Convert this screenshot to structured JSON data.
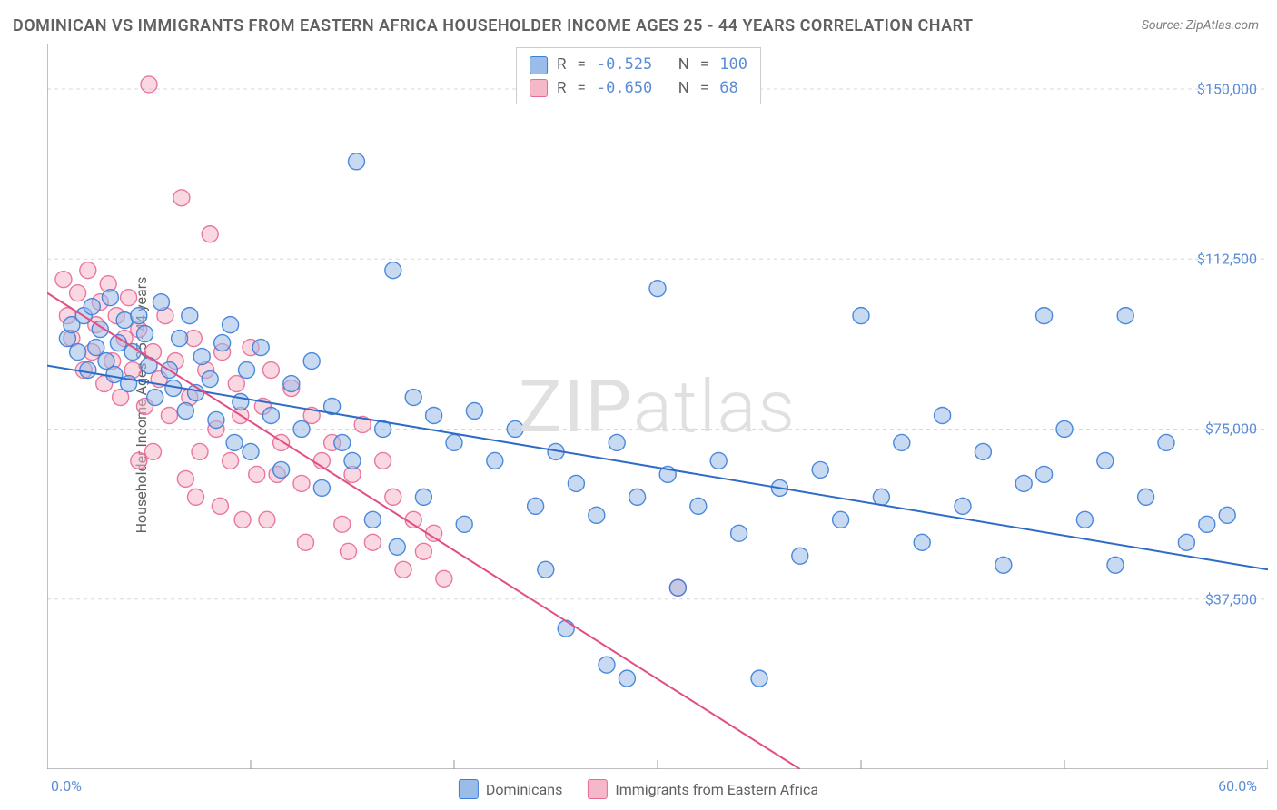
{
  "title": "DOMINICAN VS IMMIGRANTS FROM EASTERN AFRICA HOUSEHOLDER INCOME AGES 25 - 44 YEARS CORRELATION CHART",
  "source": "Source: ZipAtlas.com",
  "ylabel": "Householder Income Ages 25 - 44 years",
  "watermark": "ZIPatlas",
  "chart": {
    "type": "scatter",
    "background_color": "#ffffff",
    "plot_border_color": "#969696",
    "grid_color": "#d8d8d8",
    "grid_dash": "4,4",
    "xlim": [
      0,
      60
    ],
    "ylim": [
      0,
      160000
    ],
    "x_min_label": "0.0%",
    "x_max_label": "60.0%",
    "x_ticks": [
      0,
      10,
      20,
      30,
      40,
      50,
      60
    ],
    "y_ticks": [
      {
        "v": 37500,
        "label": "$37,500"
      },
      {
        "v": 75000,
        "label": "$75,000"
      },
      {
        "v": 112500,
        "label": "$112,500"
      },
      {
        "v": 150000,
        "label": "$150,000"
      }
    ],
    "y_tick_color": "#5b8dd6",
    "x_tick_color": "#5b8dd6",
    "marker_radius": 9,
    "marker_opacity": 0.55,
    "marker_stroke_width": 1.4,
    "trend_line_width": 2
  },
  "series": [
    {
      "name": "Dominicans",
      "fill_color": "#9bbce8",
      "stroke_color": "#3b7dd8",
      "line_color": "#2e6bc7",
      "R": "-0.525",
      "N": "100",
      "trend": {
        "x1": 0,
        "y1": 89000,
        "x2": 60,
        "y2": 44000
      },
      "points": [
        [
          1.0,
          95000
        ],
        [
          1.2,
          98000
        ],
        [
          1.5,
          92000
        ],
        [
          1.8,
          100000
        ],
        [
          2.0,
          88000
        ],
        [
          2.2,
          102000
        ],
        [
          2.4,
          93000
        ],
        [
          2.6,
          97000
        ],
        [
          2.9,
          90000
        ],
        [
          3.1,
          104000
        ],
        [
          3.3,
          87000
        ],
        [
          3.5,
          94000
        ],
        [
          3.8,
          99000
        ],
        [
          4.0,
          85000
        ],
        [
          4.2,
          92000
        ],
        [
          4.5,
          100000
        ],
        [
          4.8,
          96000
        ],
        [
          5.0,
          89000
        ],
        [
          5.3,
          82000
        ],
        [
          5.6,
          103000
        ],
        [
          6.0,
          88000
        ],
        [
          6.2,
          84000
        ],
        [
          6.5,
          95000
        ],
        [
          6.8,
          79000
        ],
        [
          7.0,
          100000
        ],
        [
          7.3,
          83000
        ],
        [
          7.6,
          91000
        ],
        [
          8.0,
          86000
        ],
        [
          8.3,
          77000
        ],
        [
          8.6,
          94000
        ],
        [
          9.0,
          98000
        ],
        [
          9.2,
          72000
        ],
        [
          9.5,
          81000
        ],
        [
          9.8,
          88000
        ],
        [
          10.0,
          70000
        ],
        [
          10.5,
          93000
        ],
        [
          11.0,
          78000
        ],
        [
          11.5,
          66000
        ],
        [
          12.0,
          85000
        ],
        [
          12.5,
          75000
        ],
        [
          13.0,
          90000
        ],
        [
          13.5,
          62000
        ],
        [
          14.0,
          80000
        ],
        [
          14.5,
          72000
        ],
        [
          15.0,
          68000
        ],
        [
          15.2,
          134000
        ],
        [
          16.0,
          55000
        ],
        [
          16.5,
          75000
        ],
        [
          17.0,
          110000
        ],
        [
          17.2,
          49000
        ],
        [
          18.0,
          82000
        ],
        [
          18.5,
          60000
        ],
        [
          19.0,
          78000
        ],
        [
          20.0,
          72000
        ],
        [
          20.5,
          54000
        ],
        [
          21.0,
          79000
        ],
        [
          22.0,
          68000
        ],
        [
          23.0,
          75000
        ],
        [
          24.0,
          58000
        ],
        [
          24.5,
          44000
        ],
        [
          25.0,
          70000
        ],
        [
          25.5,
          31000
        ],
        [
          26.0,
          63000
        ],
        [
          27.0,
          56000
        ],
        [
          27.5,
          23000
        ],
        [
          28.0,
          72000
        ],
        [
          28.5,
          20000
        ],
        [
          29.0,
          60000
        ],
        [
          30.0,
          106000
        ],
        [
          30.5,
          65000
        ],
        [
          31.0,
          40000
        ],
        [
          32.0,
          58000
        ],
        [
          33.0,
          68000
        ],
        [
          34.0,
          52000
        ],
        [
          35.0,
          20000
        ],
        [
          36.0,
          62000
        ],
        [
          37.0,
          47000
        ],
        [
          38.0,
          66000
        ],
        [
          39.0,
          55000
        ],
        [
          40.0,
          100000
        ],
        [
          41.0,
          60000
        ],
        [
          42.0,
          72000
        ],
        [
          43.0,
          50000
        ],
        [
          44.0,
          78000
        ],
        [
          45.0,
          58000
        ],
        [
          46.0,
          70000
        ],
        [
          47.0,
          45000
        ],
        [
          48.0,
          63000
        ],
        [
          49.0,
          100000
        ],
        [
          50.0,
          75000
        ],
        [
          51.0,
          55000
        ],
        [
          52.0,
          68000
        ],
        [
          52.5,
          45000
        ],
        [
          53.0,
          100000
        ],
        [
          54.0,
          60000
        ],
        [
          55.0,
          72000
        ],
        [
          56.0,
          50000
        ],
        [
          57.0,
          54000
        ],
        [
          58.0,
          56000
        ],
        [
          49.0,
          65000
        ]
      ]
    },
    {
      "name": "Immigrants from Eastern Africa",
      "fill_color": "#f5b8c9",
      "stroke_color": "#e76a95",
      "line_color": "#e24d85",
      "R": "-0.650",
      "N": "  68",
      "trend": {
        "x1": 0,
        "y1": 105000,
        "x2": 37,
        "y2": 0
      },
      "points": [
        [
          0.8,
          108000
        ],
        [
          1.0,
          100000
        ],
        [
          1.2,
          95000
        ],
        [
          1.5,
          105000
        ],
        [
          1.8,
          88000
        ],
        [
          2.0,
          110000
        ],
        [
          2.2,
          92000
        ],
        [
          2.4,
          98000
        ],
        [
          2.6,
          103000
        ],
        [
          2.8,
          85000
        ],
        [
          3.0,
          107000
        ],
        [
          3.2,
          90000
        ],
        [
          3.4,
          100000
        ],
        [
          3.6,
          82000
        ],
        [
          3.8,
          95000
        ],
        [
          4.0,
          104000
        ],
        [
          4.2,
          88000
        ],
        [
          4.5,
          97000
        ],
        [
          4.8,
          80000
        ],
        [
          5.0,
          151000
        ],
        [
          5.2,
          92000
        ],
        [
          5.5,
          86000
        ],
        [
          5.8,
          100000
        ],
        [
          6.0,
          78000
        ],
        [
          6.3,
          90000
        ],
        [
          6.6,
          126000
        ],
        [
          7.0,
          82000
        ],
        [
          7.2,
          95000
        ],
        [
          7.5,
          70000
        ],
        [
          7.8,
          88000
        ],
        [
          8.0,
          118000
        ],
        [
          8.3,
          75000
        ],
        [
          8.6,
          92000
        ],
        [
          9.0,
          68000
        ],
        [
          9.3,
          85000
        ],
        [
          9.5,
          78000
        ],
        [
          10.0,
          93000
        ],
        [
          10.3,
          65000
        ],
        [
          10.6,
          80000
        ],
        [
          11.0,
          88000
        ],
        [
          11.5,
          72000
        ],
        [
          12.0,
          84000
        ],
        [
          12.5,
          63000
        ],
        [
          13.0,
          78000
        ],
        [
          13.5,
          68000
        ],
        [
          14.0,
          72000
        ],
        [
          14.5,
          54000
        ],
        [
          15.0,
          65000
        ],
        [
          15.5,
          76000
        ],
        [
          16.0,
          50000
        ],
        [
          16.5,
          68000
        ],
        [
          17.0,
          60000
        ],
        [
          17.5,
          44000
        ],
        [
          18.0,
          55000
        ],
        [
          18.5,
          48000
        ],
        [
          19.0,
          52000
        ],
        [
          19.5,
          42000
        ],
        [
          5.2,
          70000
        ],
        [
          6.8,
          64000
        ],
        [
          8.5,
          58000
        ],
        [
          10.8,
          55000
        ],
        [
          12.7,
          50000
        ],
        [
          14.8,
          48000
        ],
        [
          4.5,
          68000
        ],
        [
          7.3,
          60000
        ],
        [
          9.6,
          55000
        ],
        [
          11.3,
          65000
        ],
        [
          31.0,
          40000
        ]
      ]
    }
  ],
  "bottom_legend": {
    "items": [
      {
        "label": "Dominicans",
        "fill": "#9bbce8",
        "stroke": "#3b7dd8"
      },
      {
        "label": "Immigrants from Eastern Africa",
        "fill": "#f5b8c9",
        "stroke": "#e76a95"
      }
    ]
  }
}
